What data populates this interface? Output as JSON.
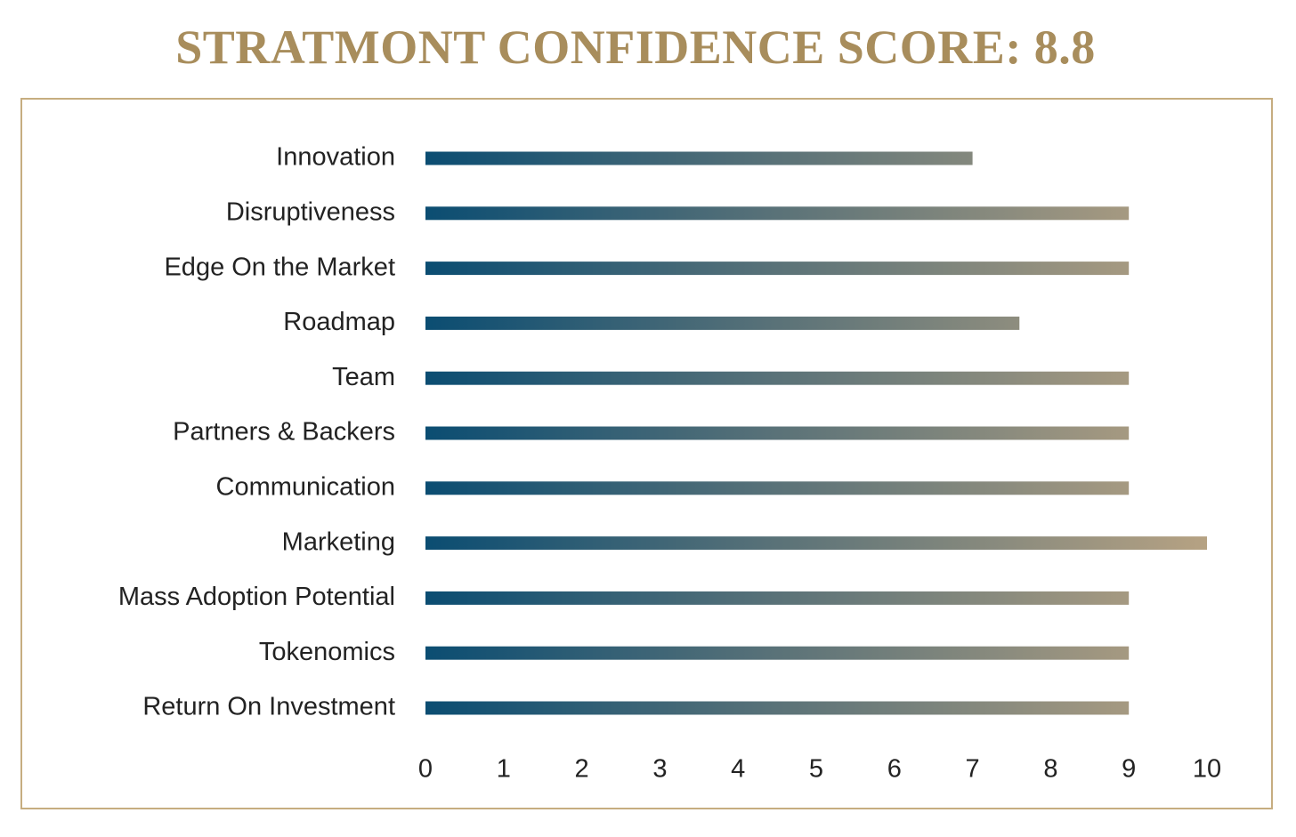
{
  "chart_data": {
    "type": "bar",
    "orientation": "horizontal",
    "title": "STRATMONT CONFIDENCE SCORE: 8.8",
    "categories": [
      "Innovation",
      "Disruptiveness",
      "Edge On the Market",
      "Roadmap",
      "Team",
      "Partners & Backers",
      "Communication",
      "Marketing",
      "Mass Adoption Potential",
      "Tokenomics",
      "Return On Investment"
    ],
    "values": [
      7,
      9,
      9,
      7.6,
      9,
      9,
      9,
      10,
      9,
      9,
      9
    ],
    "xlim": [
      0,
      10
    ],
    "xticks": [
      "0",
      "1",
      "2",
      "3",
      "4",
      "5",
      "6",
      "7",
      "8",
      "9",
      "10"
    ],
    "grid": false,
    "colors": {
      "bar_start": "#0b4d72",
      "bar_mid": "#5a7278",
      "bar_end": "#b6a283",
      "title": "#a88d5c",
      "frame": "#c6ad80"
    }
  }
}
